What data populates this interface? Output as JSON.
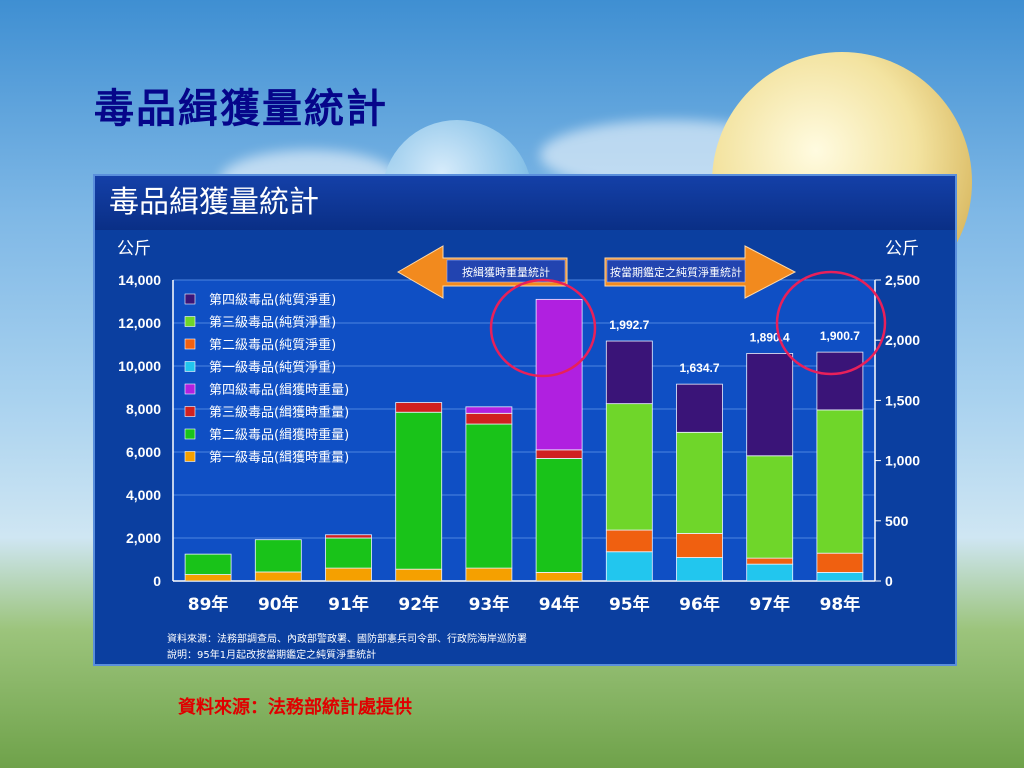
{
  "slide": {
    "title": "毒品緝獲量統計",
    "footer_source": "資料來源：法務部統計處提供"
  },
  "chart_data": {
    "type": "bar",
    "stacked": true,
    "title": "毒品緝獲量統計",
    "y_left_unit": "公斤",
    "y_right_unit": "公斤",
    "y_left_range": [
      0,
      14000
    ],
    "y_left_ticks": [
      "0",
      "2,000",
      "4,000",
      "6,000",
      "8,000",
      "10,000",
      "12,000",
      "14,000"
    ],
    "y_right_range": [
      0,
      2500
    ],
    "y_right_ticks": [
      "0",
      "500",
      "1,000",
      "1,500",
      "2,000",
      "2,500"
    ],
    "grid": true,
    "legend_position": "top-left",
    "categories": [
      "89年",
      "90年",
      "91年",
      "92年",
      "93年",
      "94年",
      "95年",
      "96年",
      "97年",
      "98年"
    ],
    "annotations": {
      "left_arrow": "按緝獲時重量統計",
      "right_arrow": "按當期鑑定之純質淨重統計",
      "value_labels": [
        "1,992.7",
        "1,634.7",
        "1,890.4",
        "1,900.7"
      ]
    },
    "notes": [
      "資料來源：法務部調查局、內政部警政署、國防部憲兵司令部、行政院海岸巡防署",
      "說明：95年1月起改按當期鑑定之純質淨重統計"
    ],
    "series": [
      {
        "name": "第四級毒品(純質淨重)",
        "axis": "right",
        "color": "#3a1478",
        "values": [
          0,
          0,
          0,
          0,
          0,
          0,
          520,
          400,
          850,
          480
        ]
      },
      {
        "name": "第三級毒品(純質淨重)",
        "axis": "right",
        "color": "#6fd62a",
        "values": [
          0,
          0,
          0,
          0,
          0,
          0,
          1050,
          840,
          850,
          1190
        ]
      },
      {
        "name": "第二級毒品(純質淨重)",
        "axis": "right",
        "color": "#f06010",
        "values": [
          0,
          0,
          0,
          0,
          0,
          0,
          180,
          200,
          50,
          160
        ]
      },
      {
        "name": "第一級毒品(純質淨重)",
        "axis": "right",
        "color": "#22c6ee",
        "values": [
          0,
          0,
          0,
          0,
          0,
          0,
          243,
          195,
          140,
          71
        ]
      },
      {
        "name": "第四級毒品(緝獲時重量)",
        "axis": "left",
        "color": "#b020e0",
        "values": [
          0,
          0,
          0,
          0,
          300,
          7000,
          0,
          0,
          0,
          0
        ]
      },
      {
        "name": "第三級毒品(緝獲時重量)",
        "axis": "left",
        "color": "#d02020",
        "values": [
          0,
          0,
          150,
          450,
          500,
          400,
          0,
          0,
          0,
          0
        ]
      },
      {
        "name": "第二級毒品(緝獲時重量)",
        "axis": "left",
        "color": "#19c319",
        "values": [
          950,
          1500,
          1400,
          7300,
          6700,
          5300,
          0,
          0,
          0,
          0
        ]
      },
      {
        "name": "第一級毒品(緝獲時重量)",
        "axis": "left",
        "color": "#f5a000",
        "values": [
          300,
          420,
          600,
          550,
          600,
          400,
          0,
          0,
          0,
          0
        ]
      }
    ]
  }
}
